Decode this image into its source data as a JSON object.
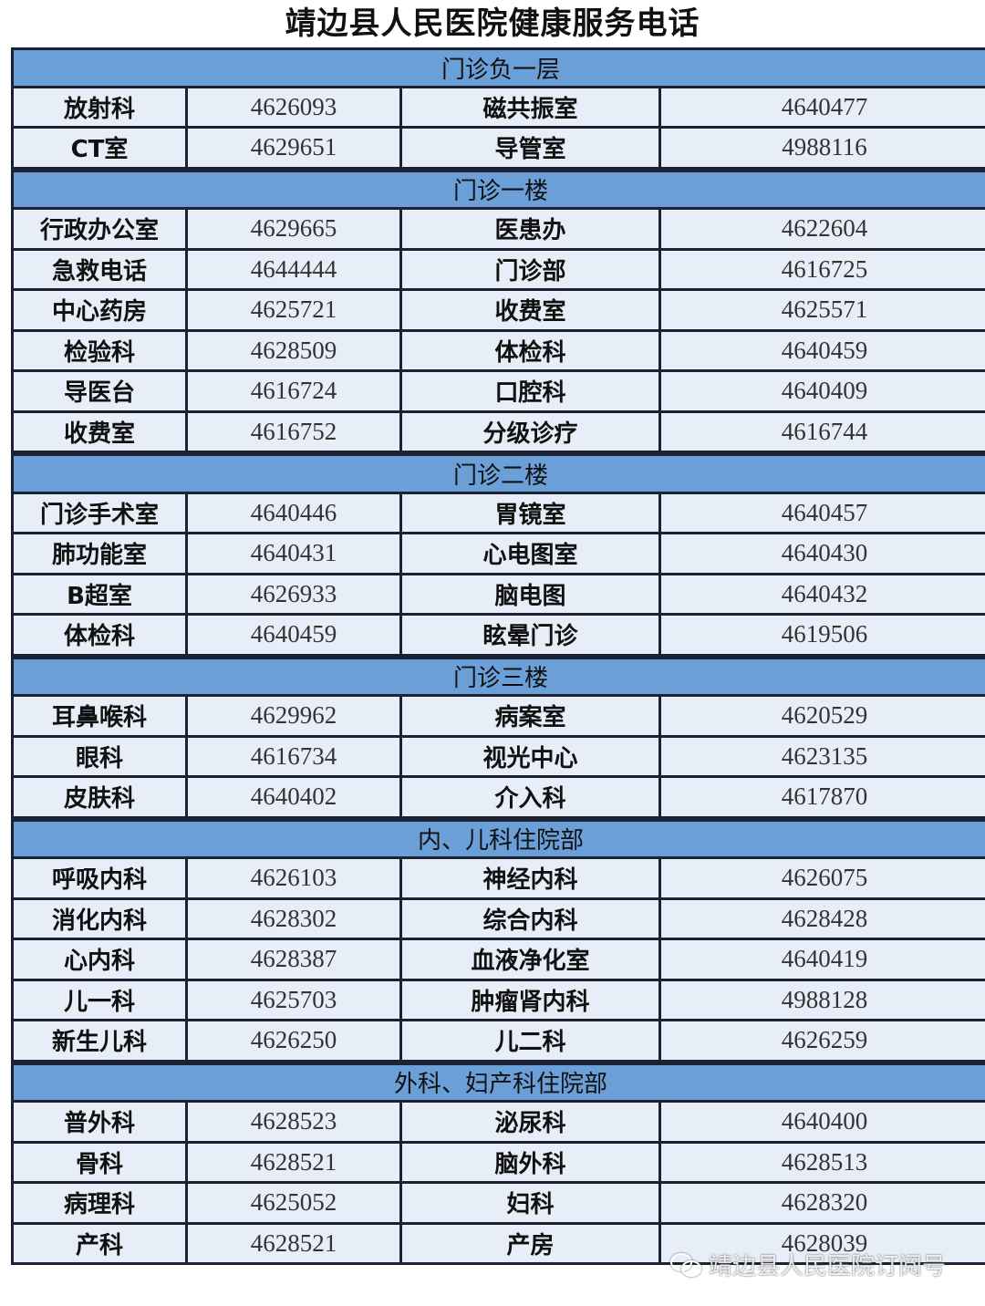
{
  "title": "靖边县人民医院健康服务电话",
  "sections": [
    {
      "name": "门诊负一层",
      "rows": [
        [
          "放射科",
          "4626093",
          "磁共振室",
          "4640477"
        ],
        [
          "CT室",
          "4629651",
          "导管室",
          "4988116"
        ]
      ]
    },
    {
      "name": "门诊一楼",
      "rows": [
        [
          "行政办公室",
          "4629665",
          "医患办",
          "4622604"
        ],
        [
          "急救电话",
          "4644444",
          "门诊部",
          "4616725"
        ],
        [
          "中心药房",
          "4625721",
          "收费室",
          "4625571"
        ],
        [
          "检验科",
          "4628509",
          "体检科",
          "4640459"
        ],
        [
          "导医台",
          "4616724",
          "口腔科",
          "4640409"
        ],
        [
          "收费室",
          "4616752",
          "分级诊疗",
          "4616744"
        ]
      ]
    },
    {
      "name": "门诊二楼",
      "rows": [
        [
          "门诊手术室",
          "4640446",
          "胃镜室",
          "4640457"
        ],
        [
          "肺功能室",
          "4640431",
          "心电图室",
          "4640430"
        ],
        [
          "B超室",
          "4626933",
          "脑电图",
          "4640432"
        ],
        [
          "体检科",
          "4640459",
          "眩晕门诊",
          "4619506"
        ]
      ]
    },
    {
      "name": "门诊三楼",
      "rows": [
        [
          "耳鼻喉科",
          "4629962",
          "病案室",
          "4620529"
        ],
        [
          "眼科",
          "4616734",
          "视光中心",
          "4623135"
        ],
        [
          "皮肤科",
          "4640402",
          "介入科",
          "4617870"
        ]
      ]
    },
    {
      "name": "内、儿科住院部",
      "rows": [
        [
          "呼吸内科",
          "4626103",
          "神经内科",
          "4626075"
        ],
        [
          "消化内科",
          "4628302",
          "综合内科",
          "4628428"
        ],
        [
          "心内科",
          "4628387",
          "血液净化室",
          "4640419"
        ],
        [
          "儿一科",
          "4625703",
          "肿瘤肾内科",
          "4988128"
        ],
        [
          "新生儿科",
          "4626250",
          "儿二科",
          "4626259"
        ]
      ]
    },
    {
      "name": "外科、妇产科住院部",
      "rows": [
        [
          "普外科",
          "4628523",
          "泌尿科",
          "4640400"
        ],
        [
          "骨科",
          "4628521",
          "脑外科",
          "4628513"
        ],
        [
          "病理科",
          "4625052",
          "妇科",
          "4628320"
        ],
        [
          "产科",
          "4628521",
          "产房",
          "4628039"
        ]
      ]
    }
  ],
  "watermark": {
    "text": "靖边县人民医院订阅号",
    "icon": "wechat-icon"
  },
  "colors": {
    "section_bg": "#6b9fd8",
    "row_bg": "#e7eef8",
    "border": "#1c2233"
  }
}
